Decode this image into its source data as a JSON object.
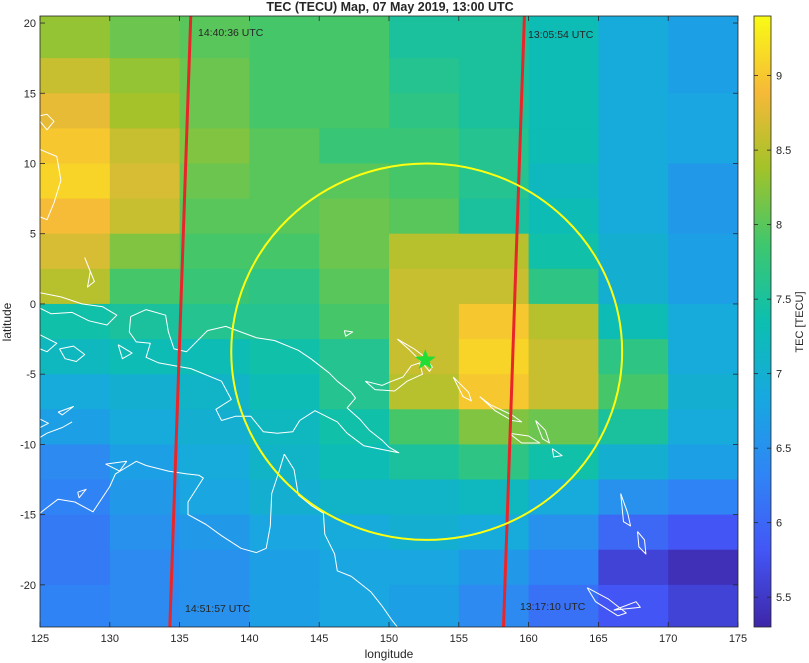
{
  "map": {
    "title": "TEC (TECU) Map, 07 May 2019, 13:00 UTC",
    "xlabel": "longitude",
    "ylabel": "latitude",
    "colorbar_label": "TEC [TECU]",
    "xlim": [
      125,
      175
    ],
    "ylim": [
      -23,
      20.5
    ],
    "x_ticks": [
      "125",
      "130",
      "135",
      "140",
      "145",
      "150",
      "155",
      "160",
      "165",
      "170",
      "175"
    ],
    "x_tick_values": [
      125,
      130,
      135,
      140,
      145,
      150,
      155,
      160,
      165,
      170,
      175
    ],
    "y_ticks": [
      "20",
      "15",
      "10",
      "5",
      "0",
      "-5",
      "-10",
      "-15",
      "-20"
    ],
    "y_tick_values": [
      20,
      15,
      10,
      5,
      0,
      -5,
      -10,
      -15,
      -20
    ],
    "colorbar_ticks": [
      "9",
      "8.5",
      "8",
      "7.5",
      "7",
      "6.5",
      "6",
      "5.5"
    ],
    "colorbar_tick_values": [
      9,
      8.5,
      8,
      7.5,
      7,
      6.5,
      6,
      5.5
    ],
    "colorbar_range": [
      5.3,
      9.4
    ],
    "grid_lon_edges": [
      125,
      130,
      135,
      140,
      145,
      150,
      155,
      160,
      165,
      170,
      175
    ],
    "grid_lat_edges": [
      20.5,
      17.5,
      15,
      12.5,
      10,
      7.5,
      5,
      2.5,
      0,
      -2.5,
      -5,
      -7.5,
      -10,
      -12.5,
      -15,
      -17.5,
      -20,
      -23
    ],
    "tec": [
      [
        8.3,
        8.1,
        8.0,
        7.9,
        7.9,
        7.5,
        7.5,
        7.3,
        6.9,
        6.7
      ],
      [
        8.6,
        8.3,
        8.1,
        7.9,
        7.9,
        7.6,
        7.5,
        7.3,
        6.9,
        6.7
      ],
      [
        8.8,
        8.4,
        8.1,
        7.9,
        7.9,
        7.7,
        7.5,
        7.3,
        6.9,
        6.8
      ],
      [
        9.0,
        8.6,
        8.2,
        8.0,
        7.8,
        7.8,
        7.6,
        7.3,
        6.9,
        6.8
      ],
      [
        9.1,
        8.7,
        8.1,
        8.0,
        8.0,
        7.9,
        7.6,
        7.2,
        6.9,
        6.6
      ],
      [
        8.9,
        8.6,
        8.0,
        8.0,
        8.1,
        8.0,
        7.5,
        7.3,
        6.9,
        6.6
      ],
      [
        8.7,
        8.2,
        7.9,
        7.9,
        8.1,
        8.5,
        8.5,
        7.4,
        7.0,
        6.7
      ],
      [
        8.5,
        7.9,
        7.8,
        7.7,
        8.0,
        8.6,
        8.6,
        7.7,
        7.0,
        6.7
      ],
      [
        7.4,
        7.5,
        7.6,
        7.6,
        7.9,
        8.6,
        9.0,
        8.5,
        7.3,
        6.9
      ],
      [
        7.2,
        7.3,
        7.3,
        7.4,
        7.6,
        8.6,
        9.1,
        8.6,
        7.7,
        6.9
      ],
      [
        6.9,
        7.0,
        7.1,
        7.3,
        7.6,
        8.5,
        9.0,
        8.6,
        7.9,
        7.0
      ],
      [
        6.7,
        6.9,
        7.0,
        7.2,
        7.4,
        7.9,
        8.2,
        8.1,
        7.5,
        6.9
      ],
      [
        6.4,
        6.7,
        6.9,
        7.1,
        7.3,
        7.5,
        7.7,
        7.4,
        7.0,
        6.7
      ],
      [
        6.3,
        6.6,
        6.8,
        7.0,
        7.1,
        7.1,
        7.2,
        6.9,
        6.5,
        6.3
      ],
      [
        6.2,
        6.5,
        6.6,
        6.8,
        6.9,
        7.0,
        6.9,
        6.5,
        6.0,
        5.8
      ],
      [
        6.2,
        6.4,
        6.5,
        6.7,
        6.8,
        6.8,
        6.6,
        6.3,
        5.6,
        5.4
      ],
      [
        6.3,
        6.4,
        6.5,
        6.7,
        6.8,
        6.7,
        6.4,
        6.1,
        5.8,
        5.6
      ]
    ],
    "tracks": [
      {
        "start_label": "14:40:36 UTC",
        "end_label": "14:51:57 UTC",
        "lon_top": 135.8,
        "lat_top": 20.5,
        "lon_bottom": 134.3,
        "lat_bottom": -23,
        "color": "#e8262a"
      },
      {
        "start_label": "13:05:54 UTC",
        "end_label": "13:17:10 UTC",
        "lon_top": 159.7,
        "lat_top": 20.5,
        "lon_bottom": 158.2,
        "lat_bottom": -23,
        "color": "#e8262a"
      }
    ],
    "circle": {
      "center_lon": 152.7,
      "center_lat": -3.4,
      "radius_lon": 14.0,
      "radius_lat": 13.4,
      "color": "#ffff10"
    },
    "epicenter": {
      "lon": 152.6,
      "lat": -4.0,
      "color": "#22dd33"
    },
    "coast_color": "#ffffff",
    "coastlines": [
      [
        [
          125,
          11
        ],
        [
          126.2,
          10.5
        ],
        [
          126.5,
          8.8
        ],
        [
          126,
          7.2
        ],
        [
          125.5,
          6
        ],
        [
          125,
          6.2
        ]
      ],
      [
        [
          125,
          13
        ],
        [
          125.5,
          12.4
        ],
        [
          126,
          13
        ],
        [
          125.5,
          13.5
        ],
        [
          125,
          13.4
        ]
      ],
      [
        [
          128.2,
          3.3
        ],
        [
          128.6,
          2.3
        ],
        [
          128.4,
          1.2
        ],
        [
          128.9,
          1.6
        ],
        [
          128.2,
          3.3
        ]
      ],
      [
        [
          125,
          0.8
        ],
        [
          126.5,
          0.5
        ],
        [
          128,
          0
        ],
        [
          129.5,
          -0.2
        ],
        [
          130.5,
          -0.8
        ],
        [
          129.8,
          -1.5
        ],
        [
          128.5,
          -1.2
        ],
        [
          127.3,
          -0.6
        ],
        [
          125.8,
          -0.7
        ],
        [
          125,
          -0.3
        ]
      ],
      [
        [
          125,
          -2.2
        ],
        [
          126.2,
          -2.8
        ],
        [
          125.5,
          -3.4
        ],
        [
          125,
          -3.2
        ]
      ],
      [
        [
          126.4,
          -3.2
        ],
        [
          127.4,
          -3
        ],
        [
          128.2,
          -3.6
        ],
        [
          127.6,
          -4.1
        ],
        [
          126.8,
          -3.9
        ],
        [
          126.4,
          -3.2
        ]
      ],
      [
        [
          130.6,
          -2.9
        ],
        [
          131.6,
          -3.5
        ],
        [
          130.9,
          -3.9
        ],
        [
          130.6,
          -2.9
        ]
      ],
      [
        [
          131.5,
          -0.9
        ],
        [
          132.6,
          -0.4
        ],
        [
          134,
          -0.8
        ],
        [
          134.2,
          -2
        ],
        [
          134.6,
          -3.2
        ],
        [
          135.5,
          -3.4
        ],
        [
          137,
          -1.9
        ],
        [
          138.3,
          -1.6
        ],
        [
          140.5,
          -2.4
        ],
        [
          141.8,
          -2.6
        ],
        [
          143.5,
          -3.3
        ],
        [
          144.4,
          -3.9
        ],
        [
          145.7,
          -4.9
        ],
        [
          146.3,
          -5.5
        ],
        [
          147.3,
          -6.3
        ],
        [
          147.6,
          -6.7
        ],
        [
          147,
          -7.4
        ],
        [
          147.9,
          -8.2
        ],
        [
          148.6,
          -9
        ],
        [
          149.5,
          -9.7
        ],
        [
          150,
          -10.2
        ],
        [
          150.7,
          -10.6
        ],
        [
          149.7,
          -10.4
        ],
        [
          148.2,
          -10.1
        ],
        [
          147,
          -9.2
        ],
        [
          146.3,
          -8.4
        ],
        [
          144.7,
          -7.6
        ],
        [
          143.6,
          -8.3
        ],
        [
          143.1,
          -9.1
        ],
        [
          142,
          -9.2
        ],
        [
          141,
          -9.1
        ],
        [
          140.1,
          -8
        ],
        [
          139,
          -8
        ],
        [
          138,
          -8.3
        ],
        [
          137.6,
          -7.5
        ],
        [
          138.7,
          -6.8
        ],
        [
          138,
          -5.5
        ],
        [
          135.8,
          -4.6
        ],
        [
          133.5,
          -4.2
        ],
        [
          132.6,
          -3.8
        ],
        [
          132.9,
          -2.8
        ],
        [
          131.9,
          -2.7
        ],
        [
          131.4,
          -2
        ],
        [
          131.5,
          -0.9
        ]
      ],
      [
        [
          142.5,
          -10.7
        ],
        [
          142.1,
          -12
        ],
        [
          141.6,
          -13.5
        ],
        [
          141.5,
          -15.8
        ],
        [
          141.2,
          -17.4
        ],
        [
          140.5,
          -17.7
        ],
        [
          139.4,
          -17.4
        ],
        [
          138,
          -16.5
        ],
        [
          136.9,
          -15.7
        ],
        [
          135.6,
          -15
        ],
        [
          135.6,
          -14.1
        ],
        [
          136.7,
          -12.4
        ],
        [
          136.4,
          -12.2
        ],
        [
          135.5,
          -12.1
        ],
        [
          134.2,
          -11.9
        ],
        [
          132.6,
          -11.5
        ],
        [
          131.9,
          -11.2
        ],
        [
          130.4,
          -12.1
        ],
        [
          130,
          -13
        ],
        [
          128.8,
          -14.8
        ],
        [
          127.5,
          -14.1
        ],
        [
          126.3,
          -13.9
        ],
        [
          125.5,
          -14.5
        ],
        [
          125,
          -14.9
        ]
      ],
      [
        [
          129.7,
          -11.4
        ],
        [
          131.2,
          -11.2
        ],
        [
          130.7,
          -11.9
        ],
        [
          129.7,
          -11.4
        ]
      ],
      [
        [
          142.5,
          -10.7
        ],
        [
          143.2,
          -11.8
        ],
        [
          143.5,
          -13.6
        ],
        [
          144.5,
          -14.4
        ],
        [
          145.3,
          -14.9
        ],
        [
          145.4,
          -16.4
        ],
        [
          146.1,
          -17.8
        ],
        [
          146.3,
          -19
        ],
        [
          147.3,
          -19.4
        ],
        [
          148.7,
          -20.5
        ],
        [
          149.5,
          -21.5
        ],
        [
          150.2,
          -22.5
        ],
        [
          150.6,
          -23
        ]
      ],
      [
        [
          127.3,
          -8.4
        ],
        [
          126.6,
          -8.8
        ],
        [
          125.5,
          -9.2
        ],
        [
          125,
          -9.5
        ]
      ],
      [
        [
          125,
          -8.2
        ],
        [
          125.6,
          -8.5
        ],
        [
          125,
          -8.8
        ]
      ],
      [
        [
          126.3,
          -7.7
        ],
        [
          127.4,
          -7.3
        ],
        [
          126.6,
          -7.9
        ],
        [
          126.3,
          -7.7
        ]
      ],
      [
        [
          127.7,
          -13.4
        ],
        [
          128.3,
          -13.2
        ],
        [
          127.8,
          -13.8
        ],
        [
          127.7,
          -13.4
        ]
      ],
      [
        [
          146.8,
          -1.9
        ],
        [
          147.4,
          -2
        ],
        [
          146.9,
          -2.3
        ],
        [
          146.8,
          -1.9
        ]
      ],
      [
        [
          148.3,
          -5.5
        ],
        [
          149.5,
          -5.8
        ],
        [
          150.2,
          -5.5
        ],
        [
          151,
          -5.2
        ],
        [
          151.6,
          -4.4
        ],
        [
          152.2,
          -4.2
        ],
        [
          152.4,
          -5
        ],
        [
          151.3,
          -5.5
        ],
        [
          150.4,
          -6.2
        ],
        [
          149,
          -6.1
        ],
        [
          148.3,
          -5.5
        ]
      ],
      [
        [
          150.6,
          -2.5
        ],
        [
          151.8,
          -3.2
        ],
        [
          152.6,
          -3.8
        ],
        [
          153.1,
          -4.5
        ],
        [
          152.9,
          -4.8
        ],
        [
          152.4,
          -4.2
        ],
        [
          151.5,
          -3.3
        ],
        [
          150.6,
          -2.5
        ]
      ],
      [
        [
          154.6,
          -5.2
        ],
        [
          155.7,
          -6.3
        ],
        [
          155.9,
          -6.9
        ],
        [
          155.3,
          -6.6
        ],
        [
          154.6,
          -5.2
        ]
      ],
      [
        [
          156.5,
          -6.6
        ],
        [
          157.3,
          -7.2
        ],
        [
          158.8,
          -7.9
        ],
        [
          159.5,
          -8.4
        ],
        [
          158.8,
          -8.3
        ],
        [
          157.6,
          -7.6
        ],
        [
          156.5,
          -6.6
        ]
      ],
      [
        [
          158.6,
          -9.2
        ],
        [
          160,
          -9.4
        ],
        [
          160.8,
          -9.9
        ],
        [
          159.5,
          -9.9
        ],
        [
          158.6,
          -9.2
        ]
      ],
      [
        [
          160.5,
          -8.3
        ],
        [
          161.2,
          -9
        ],
        [
          161.5,
          -9.9
        ],
        [
          161,
          -9.6
        ],
        [
          160.5,
          -8.3
        ]
      ],
      [
        [
          161.7,
          -10.3
        ],
        [
          162.4,
          -10.8
        ],
        [
          161.8,
          -10.9
        ],
        [
          161.7,
          -10.3
        ]
      ],
      [
        [
          166.6,
          -13.5
        ],
        [
          167.1,
          -14.9
        ],
        [
          167.3,
          -15.8
        ],
        [
          166.8,
          -15.5
        ],
        [
          166.6,
          -13.5
        ]
      ],
      [
        [
          167.8,
          -16.2
        ],
        [
          168.3,
          -16.8
        ],
        [
          168.4,
          -17.8
        ],
        [
          167.9,
          -17.3
        ],
        [
          167.8,
          -16.2
        ]
      ],
      [
        [
          164.2,
          -20.2
        ],
        [
          165.7,
          -21
        ],
        [
          167,
          -22
        ],
        [
          166.4,
          -22.2
        ],
        [
          164.8,
          -21.2
        ],
        [
          164.2,
          -20.2
        ]
      ],
      [
        [
          166.1,
          -21.8
        ],
        [
          167.7,
          -21.2
        ],
        [
          168,
          -21.6
        ],
        [
          166.1,
          -21.8
        ]
      ]
    ]
  }
}
